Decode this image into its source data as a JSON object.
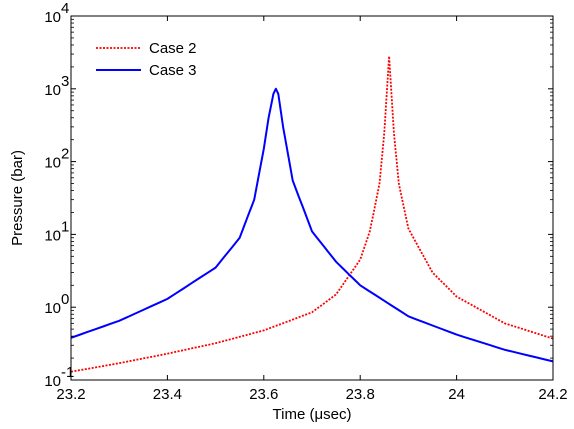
{
  "chart_data": {
    "type": "line",
    "xlabel": "Time (μsec)",
    "ylabel": "Pressure (bar)",
    "xlim": [
      23.2,
      24.2
    ],
    "ylim": [
      0.1,
      10000
    ],
    "yscale": "log",
    "grid": false,
    "legend": "top-left",
    "xticks": [
      23.2,
      23.4,
      23.6,
      23.8,
      24,
      24.2
    ],
    "xtick_labels": [
      "23.2",
      "23.4",
      "23.6",
      "23.8",
      "24",
      "24.2"
    ],
    "yticks": [
      {
        "value": 0.1,
        "base": "10",
        "exp": "-1"
      },
      {
        "value": 1,
        "base": "10",
        "exp": "0"
      },
      {
        "value": 10,
        "base": "10",
        "exp": "1"
      },
      {
        "value": 100,
        "base": "10",
        "exp": "2"
      },
      {
        "value": 1000,
        "base": "10",
        "exp": "3"
      },
      {
        "value": 10000,
        "base": "10",
        "exp": "4"
      }
    ],
    "series": [
      {
        "name": "Case 2",
        "color": "#ff0000",
        "style": "dotted",
        "x": [
          23.2,
          23.3,
          23.4,
          23.5,
          23.6,
          23.7,
          23.75,
          23.8,
          23.82,
          23.84,
          23.85,
          23.86,
          23.87,
          23.88,
          23.9,
          23.95,
          24.0,
          24.1,
          24.2
        ],
        "y": [
          0.13,
          0.17,
          0.23,
          0.32,
          0.48,
          0.85,
          1.5,
          4.5,
          11,
          50,
          250,
          2800,
          250,
          50,
          12,
          3.0,
          1.4,
          0.6,
          0.37
        ]
      },
      {
        "name": "Case 3",
        "color": "#0000ff",
        "style": "solid",
        "x": [
          23.2,
          23.3,
          23.4,
          23.5,
          23.55,
          23.58,
          23.6,
          23.61,
          23.62,
          23.625,
          23.63,
          23.64,
          23.66,
          23.7,
          23.75,
          23.8,
          23.9,
          24.0,
          24.1,
          24.2
        ],
        "y": [
          0.38,
          0.65,
          1.3,
          3.5,
          9,
          30,
          150,
          400,
          850,
          1000,
          850,
          300,
          55,
          11,
          4.2,
          2.0,
          0.75,
          0.42,
          0.26,
          0.18
        ]
      }
    ]
  }
}
